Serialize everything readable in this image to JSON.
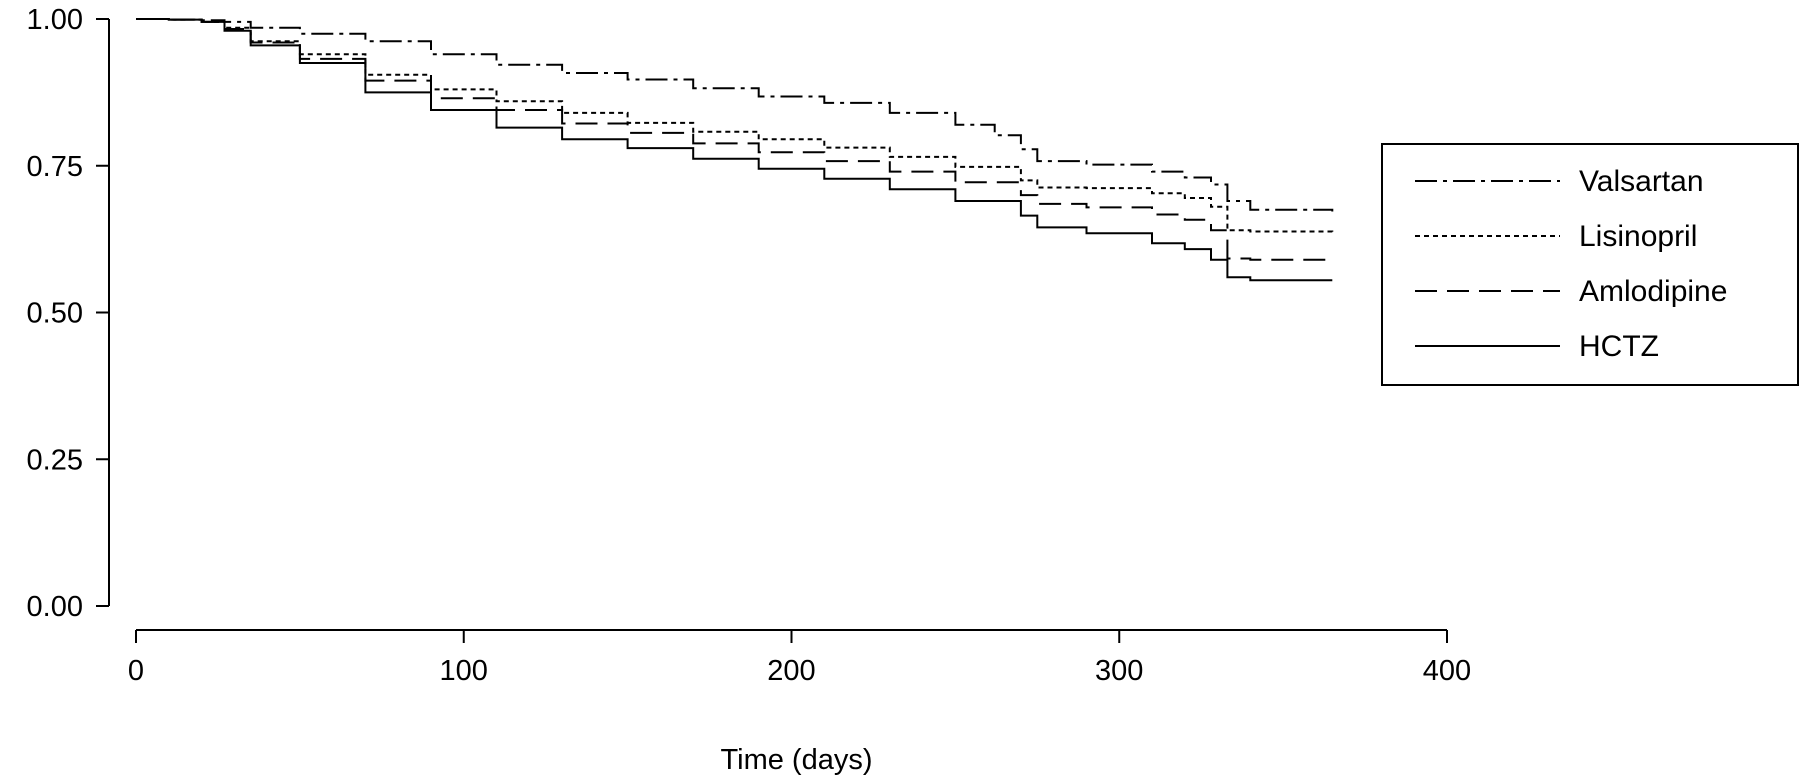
{
  "chart_data": {
    "type": "line",
    "title": "",
    "xlabel": "Time (days)",
    "ylabel": "",
    "xlim": [
      0,
      400
    ],
    "ylim": [
      0,
      1
    ],
    "xticks": [
      0,
      100,
      200,
      300,
      400
    ],
    "yticks": [
      0,
      0.25,
      0.5,
      0.75,
      1.0
    ],
    "xtick_labels": [
      "0",
      "100",
      "200",
      "300",
      "400"
    ],
    "ytick_labels": [
      "0.00",
      "0.25",
      "0.50",
      "0.75",
      "1.00"
    ],
    "grid": false,
    "legend_position": "right",
    "series": [
      {
        "name": "Valsartan",
        "dash": "dash-dot",
        "x": [
          0,
          10,
          20,
          27,
          35,
          50,
          70,
          90,
          110,
          130,
          150,
          170,
          190,
          210,
          230,
          250,
          262,
          270,
          275,
          290,
          310,
          320,
          328,
          333,
          340,
          365
        ],
        "y": [
          1.0,
          0.999,
          0.998,
          0.995,
          0.985,
          0.975,
          0.962,
          0.94,
          0.922,
          0.908,
          0.897,
          0.882,
          0.868,
          0.857,
          0.84,
          0.82,
          0.802,
          0.778,
          0.758,
          0.752,
          0.74,
          0.73,
          0.718,
          0.69,
          0.675,
          0.672
        ]
      },
      {
        "name": "Lisinopril",
        "dash": "dotted",
        "x": [
          0,
          10,
          20,
          27,
          35,
          50,
          70,
          90,
          110,
          130,
          150,
          170,
          190,
          210,
          230,
          250,
          270,
          275,
          290,
          310,
          320,
          328,
          333,
          340,
          365
        ],
        "y": [
          1.0,
          0.999,
          0.995,
          0.985,
          0.962,
          0.94,
          0.905,
          0.88,
          0.86,
          0.84,
          0.823,
          0.808,
          0.795,
          0.781,
          0.765,
          0.748,
          0.725,
          0.713,
          0.712,
          0.703,
          0.695,
          0.68,
          0.64,
          0.638,
          0.637
        ]
      },
      {
        "name": "Amlodipine",
        "dash": "dashed",
        "x": [
          0,
          10,
          20,
          27,
          35,
          50,
          70,
          90,
          110,
          130,
          150,
          170,
          190,
          210,
          230,
          250,
          270,
          275,
          290,
          310,
          320,
          328,
          333,
          340,
          365
        ],
        "y": [
          1.0,
          0.999,
          0.995,
          0.983,
          0.96,
          0.932,
          0.895,
          0.865,
          0.845,
          0.822,
          0.806,
          0.788,
          0.773,
          0.758,
          0.74,
          0.722,
          0.7,
          0.685,
          0.679,
          0.667,
          0.658,
          0.64,
          0.592,
          0.59,
          0.59
        ]
      },
      {
        "name": "HCTZ",
        "dash": "solid",
        "x": [
          0,
          10,
          20,
          27,
          35,
          50,
          70,
          90,
          110,
          130,
          150,
          170,
          190,
          210,
          230,
          250,
          270,
          275,
          290,
          310,
          320,
          328,
          333,
          340,
          365
        ],
        "y": [
          1.0,
          0.999,
          0.995,
          0.98,
          0.955,
          0.925,
          0.875,
          0.845,
          0.815,
          0.795,
          0.78,
          0.762,
          0.745,
          0.728,
          0.71,
          0.69,
          0.665,
          0.645,
          0.635,
          0.618,
          0.608,
          0.59,
          0.56,
          0.555,
          0.555
        ]
      }
    ]
  }
}
